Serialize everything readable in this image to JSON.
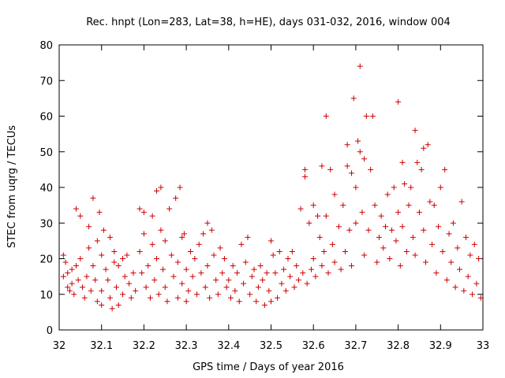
{
  "chart_data": {
    "type": "scatter",
    "title": "Rec. hnpt (Lon=283, Lat=38, h=HE), days 031-032, 2016, window 004",
    "xlabel": "GPS time / Days of year 2016",
    "ylabel": "STEC from uqrg / TECUs",
    "xlim": [
      32,
      33
    ],
    "ylim": [
      0,
      80
    ],
    "x_ticks": [
      "32",
      "32.1",
      "32.2",
      "32.3",
      "32.4",
      "32.5",
      "32.6",
      "32.7",
      "32.8",
      "32.9",
      "33"
    ],
    "y_ticks": [
      "0",
      "10",
      "20",
      "30",
      "40",
      "50",
      "60",
      "70",
      "80"
    ],
    "x_tick_values": [
      32,
      32.1,
      32.2,
      32.3,
      32.4,
      32.5,
      32.6,
      32.7,
      32.8,
      32.9,
      33
    ],
    "y_tick_values": [
      0,
      10,
      20,
      30,
      40,
      50,
      60,
      70,
      80
    ],
    "grid": false,
    "marker": "+",
    "color": "#cc0000",
    "series": [
      {
        "points": [
          [
            32.01,
            15
          ],
          [
            32.01,
            21
          ],
          [
            32.015,
            19
          ],
          [
            32.02,
            16
          ],
          [
            32.02,
            12
          ],
          [
            32.025,
            11
          ],
          [
            32.03,
            17
          ],
          [
            32.03,
            13
          ],
          [
            32.035,
            10
          ],
          [
            32.04,
            34
          ],
          [
            32.04,
            18
          ],
          [
            32.045,
            14
          ],
          [
            32.05,
            32
          ],
          [
            32.05,
            20
          ],
          [
            32.055,
            12
          ],
          [
            32.06,
            9
          ],
          [
            32.065,
            15
          ],
          [
            32.07,
            29
          ],
          [
            32.07,
            23
          ],
          [
            32.075,
            11
          ],
          [
            32.08,
            37
          ],
          [
            32.08,
            18
          ],
          [
            32.085,
            14
          ],
          [
            32.09,
            25
          ],
          [
            32.09,
            8
          ],
          [
            32.095,
            33
          ],
          [
            32.1,
            21
          ],
          [
            32.1,
            11
          ],
          [
            32.1,
            7
          ],
          [
            32.105,
            28
          ],
          [
            32.11,
            17
          ],
          [
            32.115,
            14
          ],
          [
            32.12,
            26
          ],
          [
            32.12,
            9
          ],
          [
            32.125,
            6
          ],
          [
            32.13,
            22
          ],
          [
            32.13,
            19
          ],
          [
            32.135,
            12
          ],
          [
            32.14,
            18
          ],
          [
            32.14,
            7
          ],
          [
            32.15,
            20
          ],
          [
            32.15,
            10
          ],
          [
            32.155,
            15
          ],
          [
            32.16,
            21
          ],
          [
            32.165,
            13
          ],
          [
            32.17,
            9
          ],
          [
            32.175,
            16
          ],
          [
            32.18,
            11
          ],
          [
            32.19,
            34
          ],
          [
            32.19,
            22
          ],
          [
            32.195,
            16
          ],
          [
            32.2,
            33
          ],
          [
            32.2,
            27
          ],
          [
            32.205,
            12
          ],
          [
            32.21,
            18
          ],
          [
            32.215,
            9
          ],
          [
            32.22,
            32
          ],
          [
            32.22,
            24
          ],
          [
            32.225,
            14
          ],
          [
            32.23,
            39
          ],
          [
            32.23,
            20
          ],
          [
            32.235,
            10
          ],
          [
            32.24,
            40
          ],
          [
            32.24,
            28
          ],
          [
            32.245,
            17
          ],
          [
            32.25,
            25
          ],
          [
            32.25,
            12
          ],
          [
            32.255,
            8
          ],
          [
            32.26,
            34
          ],
          [
            32.265,
            21
          ],
          [
            32.27,
            15
          ],
          [
            32.275,
            37
          ],
          [
            32.28,
            19
          ],
          [
            32.28,
            9
          ],
          [
            32.285,
            40
          ],
          [
            32.29,
            26
          ],
          [
            32.29,
            13
          ],
          [
            32.295,
            27
          ],
          [
            32.3,
            17
          ],
          [
            32.3,
            8
          ],
          [
            32.305,
            11
          ],
          [
            32.31,
            22
          ],
          [
            32.315,
            15
          ],
          [
            32.32,
            20
          ],
          [
            32.325,
            10
          ],
          [
            32.33,
            24
          ],
          [
            32.335,
            16
          ],
          [
            32.34,
            27
          ],
          [
            32.345,
            12
          ],
          [
            32.35,
            30
          ],
          [
            32.35,
            18
          ],
          [
            32.355,
            9
          ],
          [
            32.36,
            28
          ],
          [
            32.365,
            21
          ],
          [
            32.37,
            14
          ],
          [
            32.375,
            10
          ],
          [
            32.38,
            23
          ],
          [
            32.385,
            16
          ],
          [
            32.39,
            20
          ],
          [
            32.395,
            12
          ],
          [
            32.4,
            14
          ],
          [
            32.405,
            9
          ],
          [
            32.41,
            18
          ],
          [
            32.415,
            11
          ],
          [
            32.42,
            16
          ],
          [
            32.425,
            8
          ],
          [
            32.43,
            24
          ],
          [
            32.435,
            13
          ],
          [
            32.44,
            19
          ],
          [
            32.445,
            26
          ],
          [
            32.45,
            10
          ],
          [
            32.455,
            15
          ],
          [
            32.46,
            17
          ],
          [
            32.465,
            8
          ],
          [
            32.47,
            12
          ],
          [
            32.475,
            18
          ],
          [
            32.48,
            14
          ],
          [
            32.485,
            7
          ],
          [
            32.49,
            16
          ],
          [
            32.495,
            11
          ],
          [
            32.5,
            25
          ],
          [
            32.5,
            8
          ],
          [
            32.505,
            21
          ],
          [
            32.51,
            16
          ],
          [
            32.515,
            9
          ],
          [
            32.52,
            22
          ],
          [
            32.525,
            13
          ],
          [
            32.53,
            17
          ],
          [
            32.535,
            11
          ],
          [
            32.54,
            20
          ],
          [
            32.545,
            15
          ],
          [
            32.55,
            22
          ],
          [
            32.555,
            12
          ],
          [
            32.56,
            18
          ],
          [
            32.565,
            14
          ],
          [
            32.57,
            34
          ],
          [
            32.575,
            16
          ],
          [
            32.58,
            45
          ],
          [
            32.58,
            43
          ],
          [
            32.585,
            13
          ],
          [
            32.59,
            30
          ],
          [
            32.595,
            17
          ],
          [
            32.6,
            35
          ],
          [
            32.6,
            20
          ],
          [
            32.605,
            15
          ],
          [
            32.61,
            32
          ],
          [
            32.615,
            26
          ],
          [
            32.62,
            46
          ],
          [
            32.62,
            18
          ],
          [
            32.625,
            22
          ],
          [
            32.63,
            60
          ],
          [
            32.63,
            32
          ],
          [
            32.635,
            16
          ],
          [
            32.64,
            45
          ],
          [
            32.645,
            24
          ],
          [
            32.65,
            38
          ],
          [
            32.65,
            19
          ],
          [
            32.66,
            29
          ],
          [
            32.665,
            17
          ],
          [
            32.67,
            35
          ],
          [
            32.675,
            22
          ],
          [
            32.68,
            52
          ],
          [
            32.68,
            46
          ],
          [
            32.685,
            28
          ],
          [
            32.69,
            44
          ],
          [
            32.69,
            18
          ],
          [
            32.695,
            65
          ],
          [
            32.7,
            40
          ],
          [
            32.7,
            30
          ],
          [
            32.705,
            53
          ],
          [
            32.71,
            74
          ],
          [
            32.71,
            50
          ],
          [
            32.715,
            33
          ],
          [
            32.72,
            48
          ],
          [
            32.72,
            21
          ],
          [
            32.725,
            60
          ],
          [
            32.73,
            28
          ],
          [
            32.735,
            45
          ],
          [
            32.74,
            60
          ],
          [
            32.745,
            35
          ],
          [
            32.75,
            19
          ],
          [
            32.755,
            26
          ],
          [
            32.76,
            32
          ],
          [
            32.765,
            23
          ],
          [
            32.77,
            29
          ],
          [
            32.775,
            38
          ],
          [
            32.78,
            20
          ],
          [
            32.785,
            28
          ],
          [
            32.79,
            40
          ],
          [
            32.795,
            25
          ],
          [
            32.8,
            64
          ],
          [
            32.8,
            33
          ],
          [
            32.805,
            18
          ],
          [
            32.81,
            47
          ],
          [
            32.81,
            29
          ],
          [
            32.815,
            41
          ],
          [
            32.82,
            22
          ],
          [
            32.825,
            35
          ],
          [
            32.83,
            40
          ],
          [
            32.835,
            26
          ],
          [
            32.84,
            56
          ],
          [
            32.84,
            21
          ],
          [
            32.845,
            47
          ],
          [
            32.85,
            33
          ],
          [
            32.855,
            45
          ],
          [
            32.86,
            51
          ],
          [
            32.86,
            28
          ],
          [
            32.865,
            19
          ],
          [
            32.87,
            52
          ],
          [
            32.875,
            36
          ],
          [
            32.88,
            24
          ],
          [
            32.885,
            35
          ],
          [
            32.89,
            16
          ],
          [
            32.895,
            29
          ],
          [
            32.9,
            40
          ],
          [
            32.905,
            22
          ],
          [
            32.91,
            45
          ],
          [
            32.915,
            14
          ],
          [
            32.92,
            27
          ],
          [
            32.925,
            19
          ],
          [
            32.93,
            30
          ],
          [
            32.935,
            12
          ],
          [
            32.94,
            23
          ],
          [
            32.945,
            17
          ],
          [
            32.95,
            36
          ],
          [
            32.955,
            11
          ],
          [
            32.96,
            26
          ],
          [
            32.965,
            15
          ],
          [
            32.97,
            21
          ],
          [
            32.975,
            10
          ],
          [
            32.98,
            24
          ],
          [
            32.985,
            13
          ],
          [
            32.99,
            20
          ],
          [
            32.995,
            9
          ]
        ]
      }
    ]
  }
}
